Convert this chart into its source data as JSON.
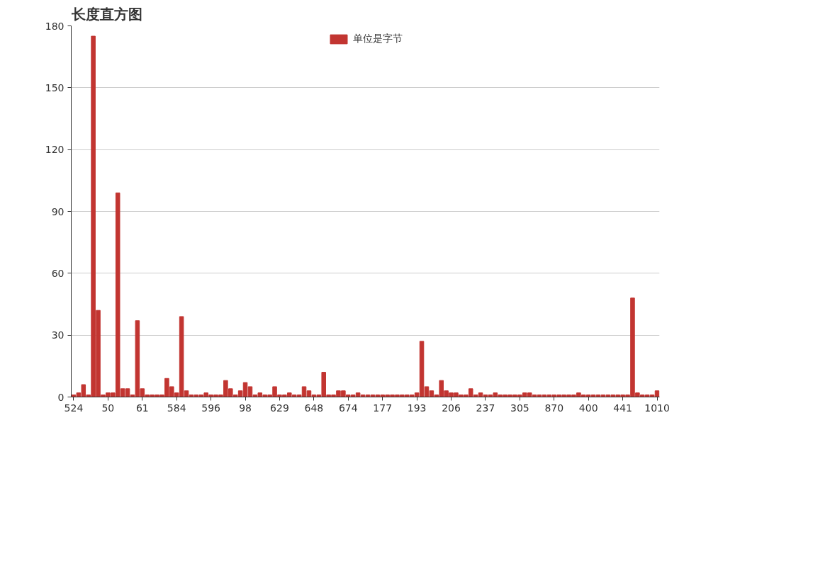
{
  "chart_data": {
    "type": "bar",
    "title": "长度直方图",
    "categories": [
      "524",
      null,
      null,
      null,
      null,
      null,
      null,
      "50",
      null,
      null,
      null,
      null,
      null,
      null,
      "61",
      null,
      null,
      null,
      null,
      null,
      null,
      "584",
      null,
      null,
      null,
      null,
      null,
      null,
      "596",
      null,
      null,
      null,
      null,
      null,
      null,
      "98",
      null,
      null,
      null,
      null,
      null,
      null,
      "629",
      null,
      null,
      null,
      null,
      null,
      null,
      "648",
      null,
      null,
      null,
      null,
      null,
      null,
      "674",
      null,
      null,
      null,
      null,
      null,
      null,
      "177",
      null,
      null,
      null,
      null,
      null,
      null,
      "193",
      null,
      null,
      null,
      null,
      null,
      null,
      "206",
      null,
      null,
      null,
      null,
      null,
      null,
      "237",
      null,
      null,
      null,
      null,
      null,
      null,
      "305",
      null,
      null,
      null,
      null,
      null,
      null,
      "870",
      null,
      null,
      null,
      null,
      null,
      null,
      "400",
      null,
      null,
      null,
      null,
      null,
      null,
      "441",
      null,
      null,
      null,
      null,
      null,
      null,
      "1010"
    ],
    "series": [
      {
        "name": "单位是字节",
        "color": "#c23531",
        "values": [
          1,
          2,
          6,
          1,
          175,
          42,
          1,
          2,
          2,
          99,
          4,
          4,
          1,
          37,
          4,
          1,
          1,
          1,
          1,
          9,
          5,
          2,
          39,
          3,
          1,
          1,
          1,
          2,
          1,
          1,
          1,
          8,
          4,
          1,
          3,
          7,
          5,
          1,
          2,
          1,
          1,
          5,
          1,
          1,
          2,
          1,
          1,
          5,
          3,
          1,
          1,
          12,
          1,
          1,
          3,
          3,
          1,
          1,
          2,
          1,
          1,
          1,
          1,
          1,
          1,
          1,
          1,
          1,
          1,
          1,
          2,
          27,
          5,
          3,
          1,
          8,
          3,
          2,
          2,
          1,
          1,
          4,
          1,
          2,
          1,
          1,
          2,
          1,
          1,
          1,
          1,
          1,
          2,
          2,
          1,
          1,
          1,
          1,
          1,
          1,
          1,
          1,
          1,
          2,
          1,
          1,
          1,
          1,
          1,
          1,
          1,
          1,
          1,
          1,
          48,
          2,
          1,
          1,
          1,
          3
        ]
      }
    ],
    "ylim": [
      0,
      180
    ],
    "yticks": [
      0,
      30,
      60,
      90,
      120,
      150,
      180
    ],
    "grid": "y",
    "legend": "top"
  }
}
